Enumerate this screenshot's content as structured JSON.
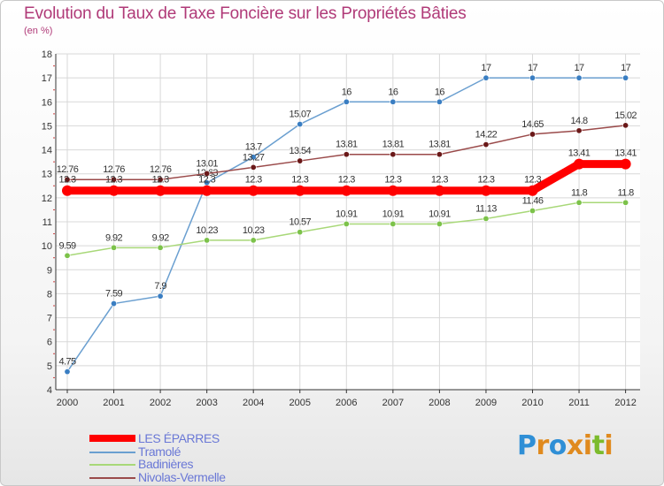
{
  "colors": {
    "title": "#b03a78",
    "legend_text": "#6a78d6",
    "grid": "#d8d8d8",
    "axis": "#333333"
  },
  "logo": {
    "letters": [
      "P",
      "r",
      "o",
      "x",
      "i",
      "t",
      "i"
    ],
    "colors": [
      "#2f8fd6",
      "#e08a1e",
      "#2f8fd6",
      "#e08a1e",
      "#e08a1e",
      "#7cbb2c",
      "#e08a1e"
    ]
  },
  "chart_data": {
    "type": "line",
    "title": "Evolution du Taux de Taxe Foncière sur les Propriétés Bâties",
    "subtitle": "(en %)",
    "xlabel": "",
    "ylabel": "(en %)",
    "categories": [
      "2000",
      "2001",
      "2002",
      "2003",
      "2004",
      "2005",
      "2006",
      "2007",
      "2008",
      "2009",
      "2010",
      "2011",
      "2012"
    ],
    "ylim": [
      4,
      18
    ],
    "yticks": [
      "4",
      "5",
      "6",
      "7",
      "8",
      "9",
      "10",
      "11",
      "12",
      "13",
      "14",
      "15",
      "16",
      "17",
      "18"
    ],
    "grid": true,
    "legend_position": "bottom-left",
    "series": [
      {
        "name": "Tramolé",
        "color": "#6a9fd0",
        "marker": "#3a7ec2",
        "values": [
          4.75,
          7.59,
          7.9,
          12.63,
          13.7,
          15.07,
          16,
          16,
          16,
          17,
          17,
          17,
          17
        ],
        "labels": [
          "4.75",
          "7.59",
          "7.9",
          "12.63",
          "13.7",
          "15.07",
          "16",
          "16",
          "16",
          "17",
          "17",
          "17",
          "17"
        ]
      },
      {
        "name": "Badinières",
        "color": "#a8d878",
        "marker": "#7cc24a",
        "values": [
          9.59,
          9.92,
          9.92,
          10.23,
          10.23,
          10.57,
          10.91,
          10.91,
          10.91,
          11.13,
          11.46,
          11.8,
          11.8
        ],
        "labels": [
          "9.59",
          "9.92",
          "9.92",
          "10.23",
          "10.23",
          "10.57",
          "10.91",
          "10.91",
          "10.91",
          "11.13",
          "11.46",
          "11.8",
          "11.8"
        ]
      },
      {
        "name": "Nivolas-Vermelle",
        "color": "#9a4a4a",
        "marker": "#6a1818",
        "values": [
          12.76,
          12.76,
          12.76,
          13.01,
          13.27,
          13.54,
          13.81,
          13.81,
          13.81,
          14.22,
          14.65,
          14.8,
          15.02
        ],
        "labels": [
          "12.76",
          "12.76",
          "12.76",
          "13.01",
          "13.27",
          "13.54",
          "13.81",
          "13.81",
          "13.81",
          "14.22",
          "14.65",
          "14.8",
          "15.02"
        ]
      },
      {
        "name": "LES ÉPARRES",
        "color": "#ff0000",
        "marker": "#ff0000",
        "values": [
          12.3,
          12.3,
          12.3,
          12.3,
          12.3,
          12.3,
          12.3,
          12.3,
          12.3,
          12.3,
          12.3,
          13.41,
          13.41
        ],
        "labels": [
          "12.3",
          "12.3",
          "12.3",
          "12.3",
          "12.3",
          "12.3",
          "12.3",
          "12.3",
          "12.3",
          "12.3",
          "12.3",
          "13.41",
          "13.41"
        ]
      }
    ],
    "legend": [
      "LES ÉPARRES",
      "Tramolé",
      "Badinières",
      "Nivolas-Vermelle"
    ]
  }
}
